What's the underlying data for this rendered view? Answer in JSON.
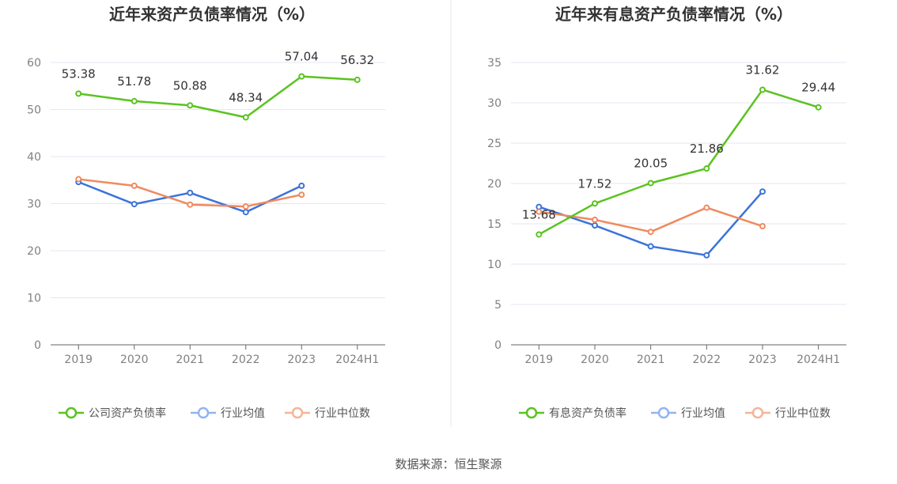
{
  "colors": {
    "green": "#5ac31f",
    "blue": "#3a73d9",
    "orange": "#ef8a5f",
    "legend_blue": "#92b4f0",
    "legend_orange": "#f5b49a",
    "grid": "#e4e6f2",
    "axis": "#666666"
  },
  "source": "数据来源：恒生聚源",
  "chart_data": [
    {
      "type": "line",
      "title": "近年来资产负债率情况（%）",
      "categories": [
        "2019",
        "2020",
        "2021",
        "2022",
        "2023",
        "2024H1"
      ],
      "ylim": [
        0,
        60
      ],
      "yticks": [
        0,
        10,
        20,
        30,
        40,
        50,
        60
      ],
      "series": [
        {
          "name": "公司资产负债率",
          "color": "#5ac31f",
          "legend_color": "#5ac31f",
          "labeled": true,
          "values": [
            53.38,
            51.78,
            50.88,
            48.34,
            57.04,
            56.32
          ]
        },
        {
          "name": "行业均值",
          "color": "#3a73d9",
          "legend_color": "#92b4f0",
          "labeled": false,
          "values": [
            34.6,
            29.9,
            32.3,
            28.2,
            33.8,
            null
          ]
        },
        {
          "name": "行业中位数",
          "color": "#ef8a5f",
          "legend_color": "#f5b49a",
          "labeled": false,
          "values": [
            35.2,
            33.8,
            29.8,
            29.4,
            31.9,
            null
          ]
        }
      ]
    },
    {
      "type": "line",
      "title": "近年来有息资产负债率情况（%）",
      "categories": [
        "2019",
        "2020",
        "2021",
        "2022",
        "2023",
        "2024H1"
      ],
      "ylim": [
        0,
        35
      ],
      "yticks": [
        0,
        5,
        10,
        15,
        20,
        25,
        30,
        35
      ],
      "series": [
        {
          "name": "有息资产负债率",
          "color": "#5ac31f",
          "legend_color": "#5ac31f",
          "labeled": true,
          "values": [
            13.68,
            17.52,
            20.05,
            21.86,
            31.62,
            29.44
          ]
        },
        {
          "name": "行业均值",
          "color": "#3a73d9",
          "legend_color": "#92b4f0",
          "labeled": false,
          "values": [
            17.1,
            14.8,
            12.2,
            11.1,
            19.0,
            null
          ]
        },
        {
          "name": "行业中位数",
          "color": "#ef8a5f",
          "legend_color": "#f5b49a",
          "labeled": false,
          "values": [
            16.5,
            15.5,
            14.0,
            17.0,
            14.7,
            null
          ]
        }
      ]
    }
  ]
}
